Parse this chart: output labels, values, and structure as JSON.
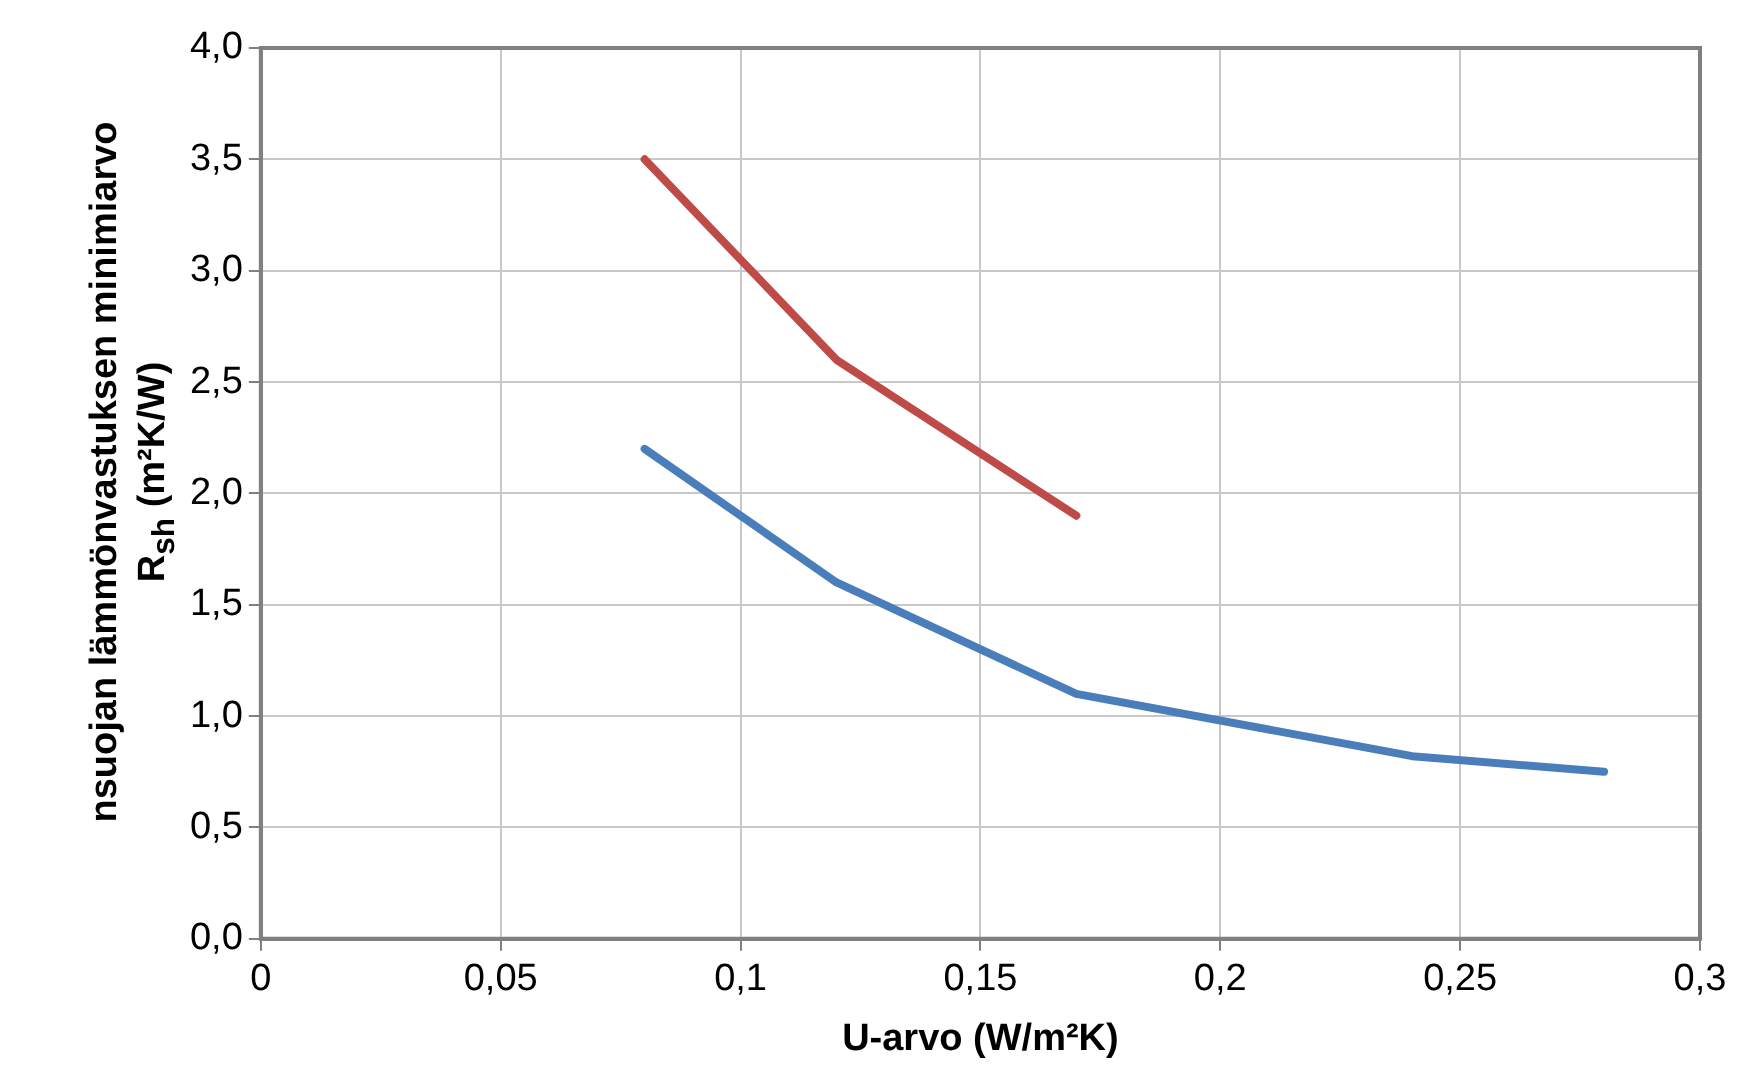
{
  "chart_data": {
    "type": "line",
    "xlabel": "U-arvo (W/m²K)",
    "ylabel": "nsuojan lämmönvastuksen minimiarvo\nR$_{sh}$ (m²K/W)",
    "series": [
      {
        "color": "#4a7ebb",
        "x": [
          0.08,
          0.12,
          0.17,
          0.24,
          0.28
        ],
        "values": [
          2.2,
          1.6,
          1.1,
          0.82,
          0.75
        ]
      },
      {
        "color": "#be4b48",
        "x": [
          0.08,
          0.12,
          0.17
        ],
        "values": [
          3.5,
          2.6,
          1.9
        ]
      }
    ],
    "xlim": [
      0,
      0.3
    ],
    "xticks": [
      0,
      {
        "value": 0.05,
        "label": "0,05"
      },
      {
        "value": 0.1,
        "label": "0,1"
      },
      {
        "value": 0.15,
        "label": "0,15"
      },
      {
        "value": 0.2,
        "label": "0,2"
      },
      {
        "value": 0.25,
        "label": "0,25"
      },
      {
        "value": 0.3,
        "label": "0,3"
      }
    ],
    "ylim": [
      0,
      4
    ],
    "yticks": [
      {
        "value": 0,
        "label": "0,0"
      },
      {
        "value": 0.5,
        "label": "0,5"
      },
      {
        "value": 1,
        "label": "1,0"
      },
      {
        "value": 1.5,
        "label": "1,5"
      },
      {
        "value": 2,
        "label": "2,0"
      },
      {
        "value": 2.5,
        "label": "2,5"
      },
      {
        "value": 3,
        "label": "3,0"
      },
      {
        "value": 3.5,
        "label": "3,5"
      },
      {
        "value": 4,
        "label": "4,0"
      }
    ],
    "grid": true,
    "legend": false,
    "marker": "none",
    "line_style": "solid"
  }
}
